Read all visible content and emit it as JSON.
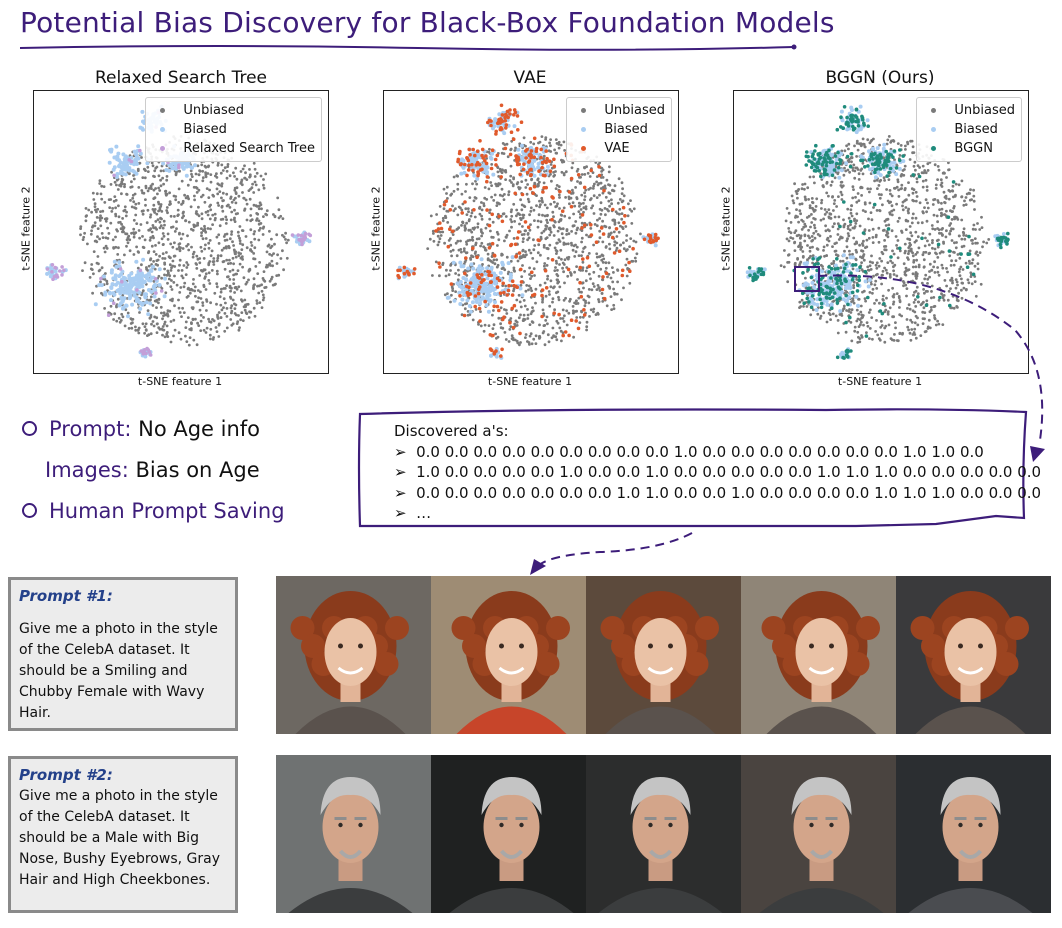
{
  "title": "Potential Bias Discovery for Black-Box Foundation Models",
  "colors": {
    "unbiased": "#7a7a7a",
    "biased": "#a9cdf2",
    "search_tree": "#c39fd8",
    "vae": "#e05a2c",
    "bggn": "#1f8b7c",
    "accent": "#3d1d7a"
  },
  "plots": [
    {
      "title": "Relaxed Search Tree",
      "xlabel": "t-SNE feature 1",
      "ylabel": "t-SNE feature 2",
      "legend": [
        "Unbiased",
        "Biased",
        "Relaxed Search Tree"
      ]
    },
    {
      "title": "VAE",
      "xlabel": "t-SNE feature 1",
      "ylabel": "t-SNE feature 2",
      "legend": [
        "Unbiased",
        "Biased",
        "VAE"
      ]
    },
    {
      "title": "BGGN (Ours)",
      "xlabel": "t-SNE feature 1",
      "ylabel": "t-SNE feature 2",
      "legend": [
        "Unbiased",
        "Biased",
        "BGGN"
      ]
    }
  ],
  "bullets": {
    "prompt_key": "Prompt:",
    "prompt_val": "No Age info",
    "images_key": "Images:",
    "images_val": "Bias on Age",
    "saving": "Human Prompt Saving"
  },
  "discovered": {
    "header": "Discovered a's:",
    "vectors": [
      "0.0 0.0 0.0 0.0 0.0 0.0 0.0 0.0 0.0 1.0 0.0 0.0 0.0 0.0 0.0 0.0 0.0 1.0 1.0 0.0",
      "1.0 0.0 0.0 0.0 0.0 1.0 0.0 0.0 1.0 0.0 0.0 0.0 0.0 0.0 1.0 1.0 1.0 0.0 0.0 0.0 0.0 0.0",
      "0.0 0.0 0.0 0.0 0.0 0.0 0.0 1.0 1.0 0.0 0.0 1.0 0.0 0.0 0.0 0.0 1.0 1.0 1.0 0.0 0.0 0.0"
    ],
    "ellipsis": "…",
    "arrow": "➢"
  },
  "prompts": [
    {
      "title": "Prompt #1:",
      "text": "Give me a photo in the style of the CelebA dataset. It should be a Smiling and Chubby Female with Wavy Hair."
    },
    {
      "title": "Prompt #2:",
      "text": "Give me a photo in the style of the CelebA dataset. It should be a Male with Big Nose, Bushy Eyebrows, Gray Hair and High Cheekbones."
    }
  ],
  "photo_rows": [
    {
      "kind": "female-red-curly",
      "bgs": [
        "#6d6862",
        "#9e8c74",
        "#5c4a3c",
        "#8f8577",
        "#3a3a3c"
      ]
    },
    {
      "kind": "male-gray",
      "bgs": [
        "#6f7272",
        "#1f2121",
        "#2c2d2d",
        "#4a4440",
        "#2b2e31"
      ]
    }
  ]
}
